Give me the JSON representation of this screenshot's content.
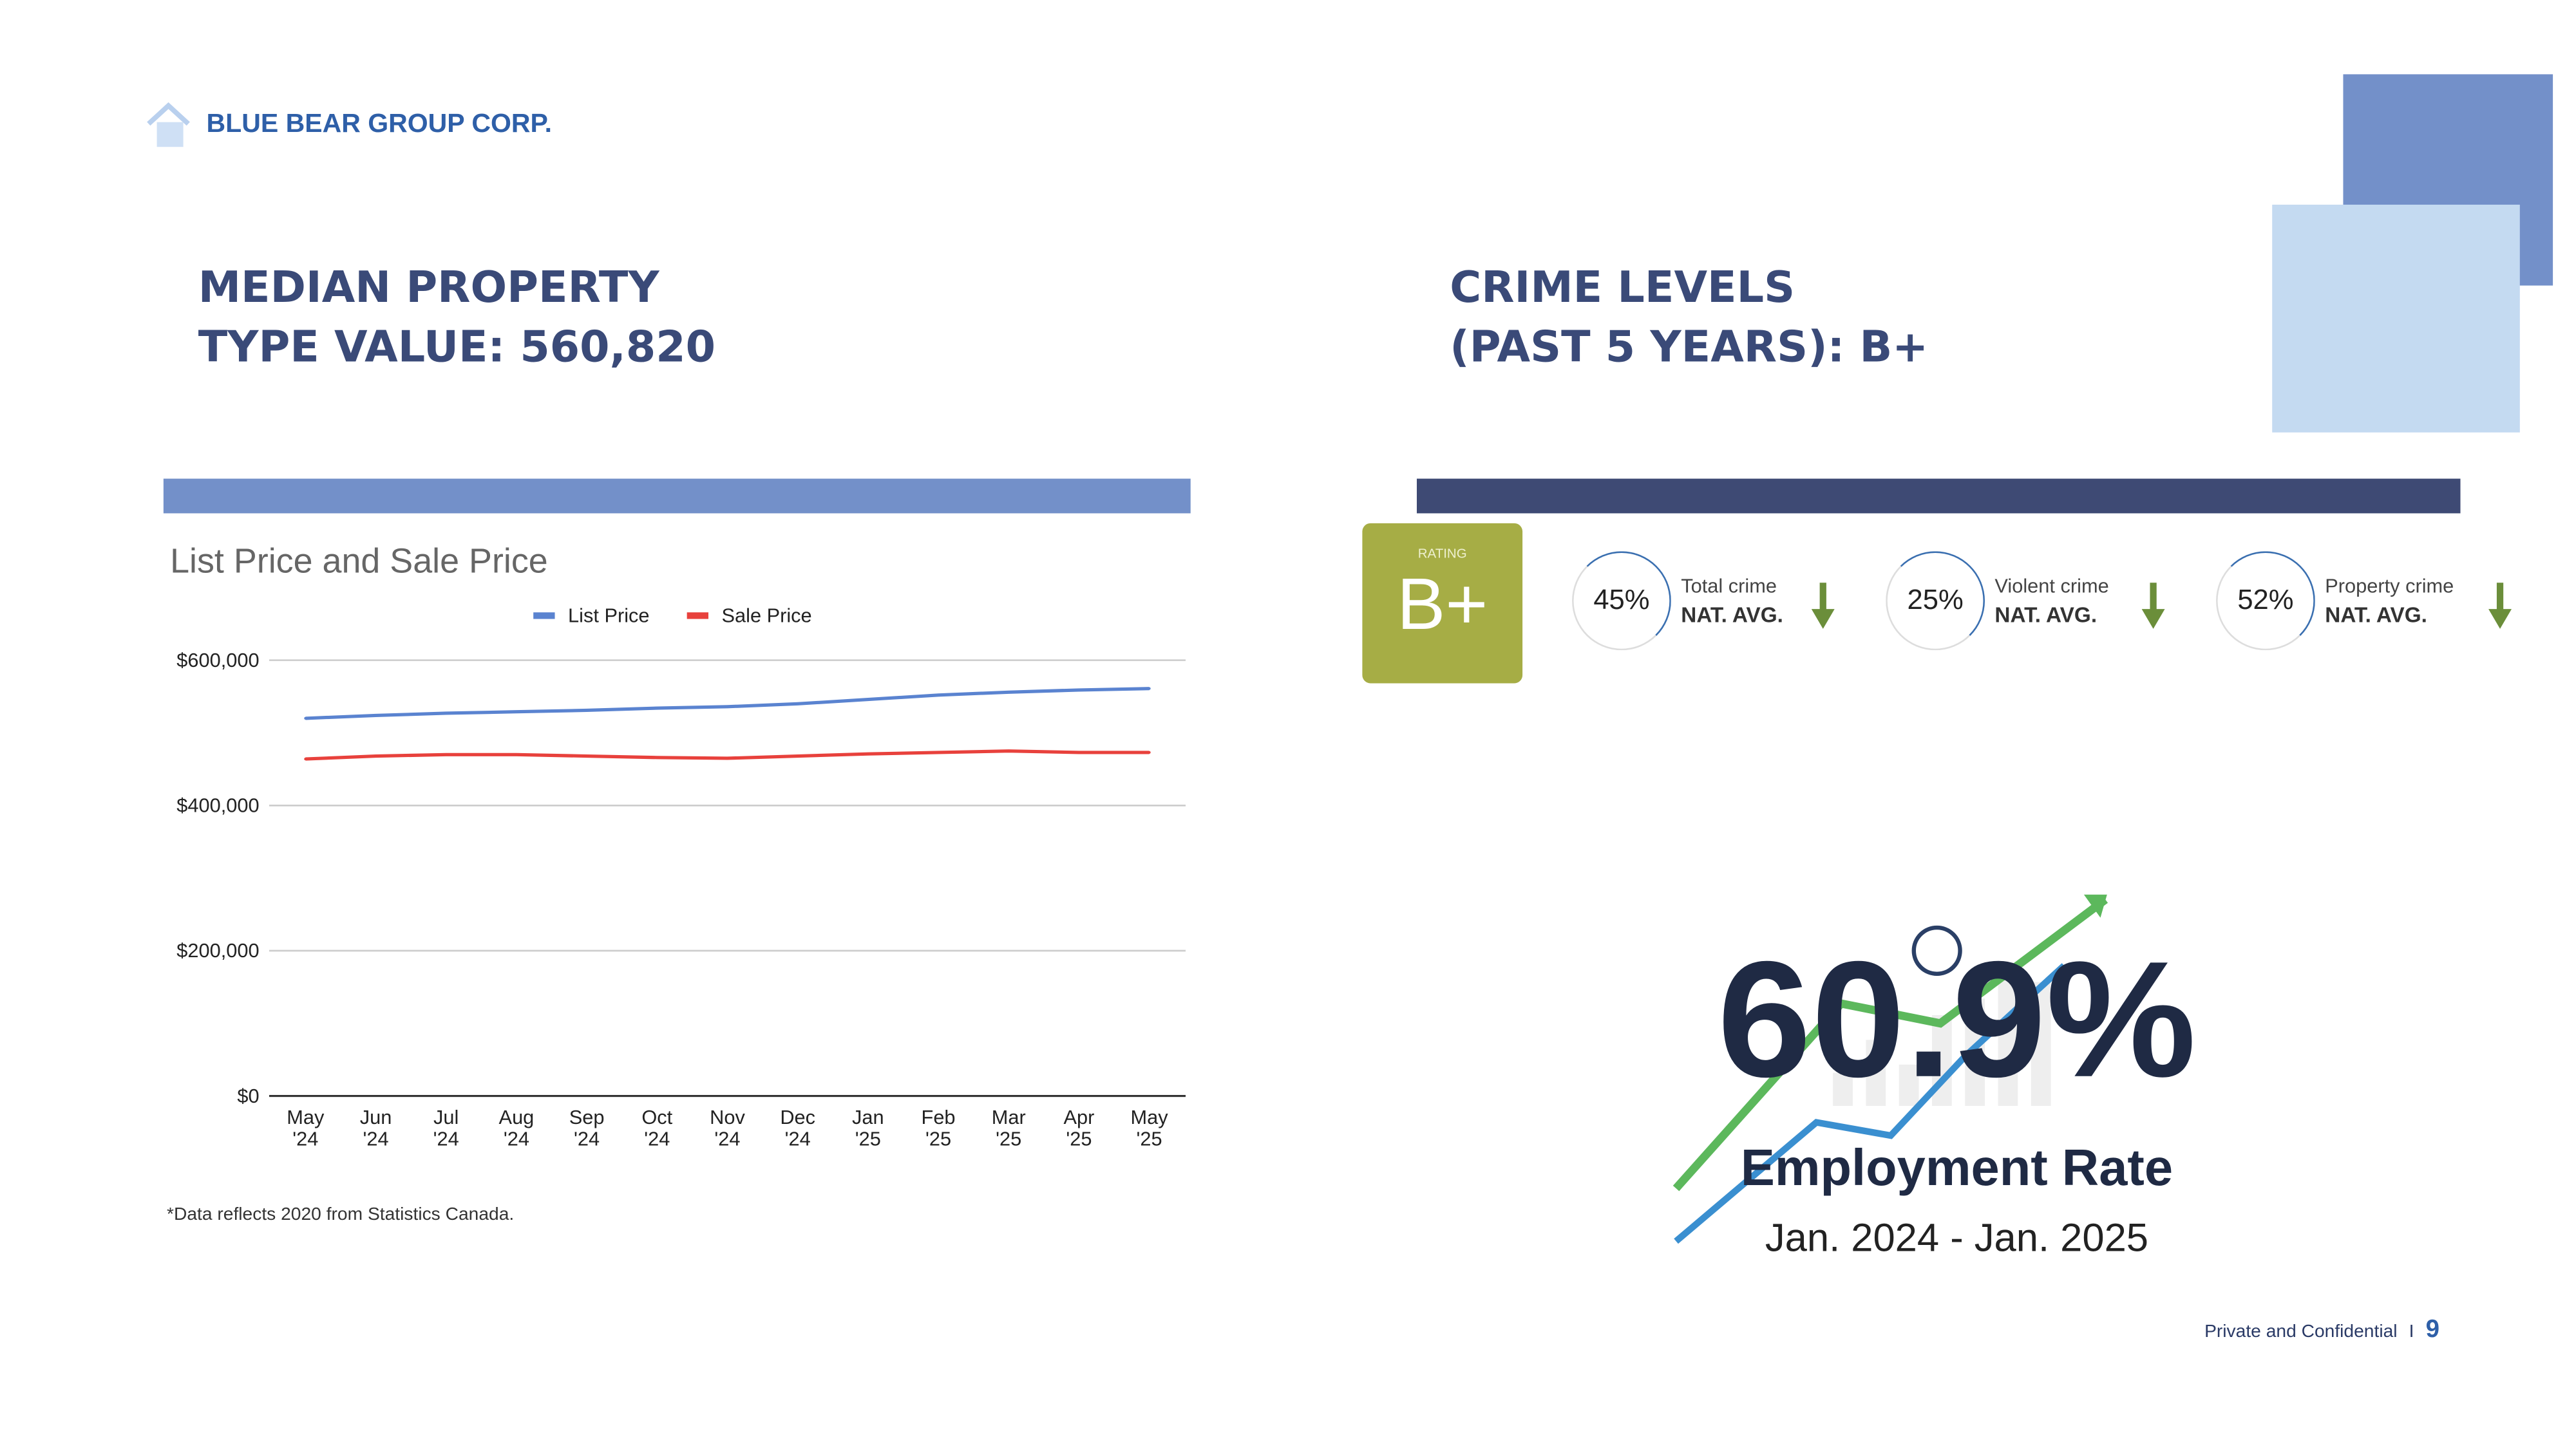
{
  "header": {
    "company": "BLUE BEAR GROUP CORP."
  },
  "left": {
    "title_line1": "MEDIAN PROPERTY",
    "title_line2": "TYPE VALUE: 560,820",
    "footnote": "*Data reflects 2020 from Statistics Canada."
  },
  "right": {
    "title_line1": "CRIME LEVELS",
    "title_line2": "(PAST 5 YEARS): B+",
    "rating": {
      "label": "RATING",
      "value": "B+"
    },
    "stats": [
      {
        "pct": "45%",
        "label": "Total crime",
        "sub": "NAT. AVG."
      },
      {
        "pct": "25%",
        "label": "Violent crime",
        "sub": "NAT. AVG."
      },
      {
        "pct": "52%",
        "label": "Property crime",
        "sub": "NAT. AVG."
      }
    ]
  },
  "employment": {
    "value": "60.9%",
    "label": "Employment Rate",
    "period": "Jan. 2024 - Jan. 2025"
  },
  "footer": {
    "text": "Private and Confidential",
    "sep": "I",
    "page": "9"
  },
  "colors": {
    "accent_light": "#7390c9",
    "accent_dark": "#3e4a74",
    "rating": "#a6ad45",
    "list": "#5a83d0",
    "sale": "#e8413c"
  },
  "chart_data": {
    "type": "line",
    "title": "List Price and Sale Price",
    "categories": [
      "May '24",
      "Jun '24",
      "Jul '24",
      "Aug '24",
      "Sep '24",
      "Oct '24",
      "Nov '24",
      "Dec '24",
      "Jan '25",
      "Feb '25",
      "Mar '25",
      "Apr '25",
      "May '25"
    ],
    "series": [
      {
        "name": "List Price",
        "values": [
          520000,
          524000,
          527000,
          529000,
          531000,
          534000,
          536000,
          540000,
          546000,
          552000,
          556000,
          559000,
          561000
        ]
      },
      {
        "name": "Sale Price",
        "values": [
          464000,
          468000,
          470000,
          470000,
          468000,
          466000,
          465000,
          468000,
          471000,
          473000,
          475000,
          473000,
          473000
        ]
      }
    ],
    "yticks": [
      "$0",
      "$200,000",
      "$400,000",
      "$600,000"
    ],
    "ylim": [
      0,
      600000
    ],
    "legend": "top"
  }
}
